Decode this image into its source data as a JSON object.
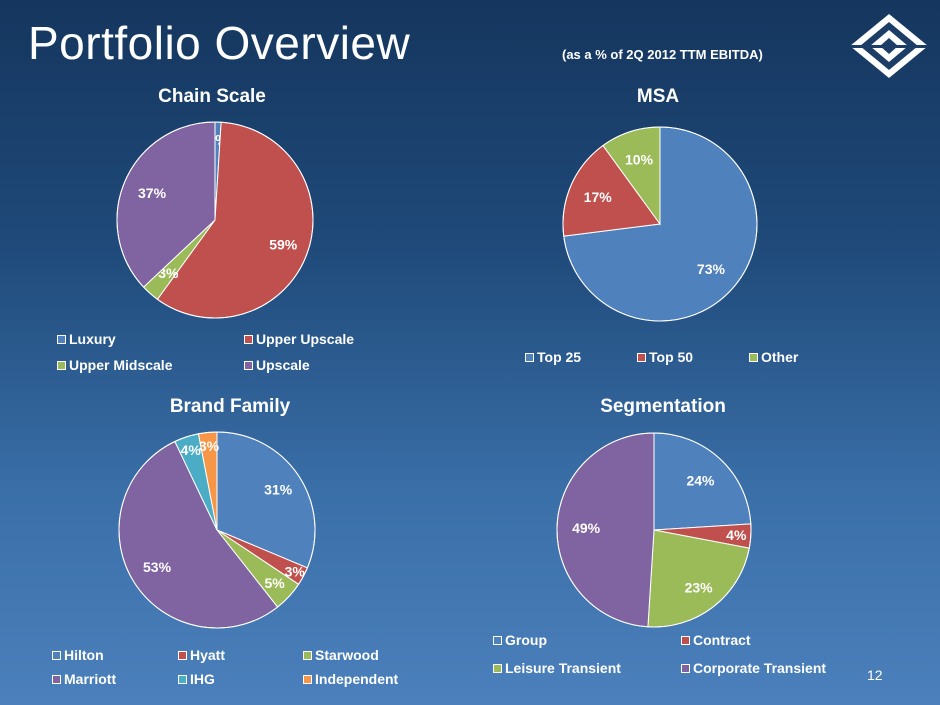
{
  "header": {
    "title": "Portfolio Overview",
    "subtitle": "(as a % of 2Q 2012 TTM EBITDA)",
    "page_number": "12"
  },
  "chart_data": [
    {
      "type": "pie",
      "title": "Chain Scale",
      "slices": [
        {
          "label": "Luxury",
          "value": 1,
          "display": "1%",
          "color": "#4f81bd"
        },
        {
          "label": "Upper Upscale",
          "value": 59,
          "display": "59%",
          "color": "#c0504d"
        },
        {
          "label": "Upper Midscale",
          "value": 3,
          "display": "3%",
          "color": "#9bbb59"
        },
        {
          "label": "Upscale",
          "value": 37,
          "display": "37%",
          "color": "#8064a2"
        }
      ]
    },
    {
      "type": "pie",
      "title": "MSA",
      "slices": [
        {
          "label": "Top 25",
          "value": 73,
          "display": "73%",
          "color": "#4f81bd"
        },
        {
          "label": "Top 50",
          "value": 17,
          "display": "17%",
          "color": "#c0504d"
        },
        {
          "label": "Other",
          "value": 10,
          "display": "10%",
          "color": "#9bbb59"
        }
      ]
    },
    {
      "type": "pie",
      "title": "Brand Family",
      "slices": [
        {
          "label": "Hilton",
          "value": 31,
          "display": "31%",
          "color": "#4f81bd"
        },
        {
          "label": "Hyatt",
          "value": 3,
          "display": "3%",
          "color": "#c0504d"
        },
        {
          "label": "Starwood",
          "value": 5,
          "display": "5%",
          "color": "#9bbb59"
        },
        {
          "label": "Marriott",
          "value": 53,
          "display": "53%",
          "color": "#8064a2"
        },
        {
          "label": "IHG",
          "value": 4,
          "display": "4%",
          "color": "#4bacc6"
        },
        {
          "label": "Independent",
          "value": 3,
          "display": "3%",
          "color": "#f79646"
        }
      ]
    },
    {
      "type": "pie",
      "title": "Segmentation",
      "slices": [
        {
          "label": "Group",
          "value": 24,
          "display": "24%",
          "color": "#4f81bd"
        },
        {
          "label": "Contract",
          "value": 4,
          "display": "4%",
          "color": "#c0504d"
        },
        {
          "label": "Leisure Transient",
          "value": 23,
          "display": "23%",
          "color": "#9bbb59"
        },
        {
          "label": "Corporate Transient",
          "value": 49,
          "display": "49%",
          "color": "#8064a2"
        }
      ]
    }
  ]
}
